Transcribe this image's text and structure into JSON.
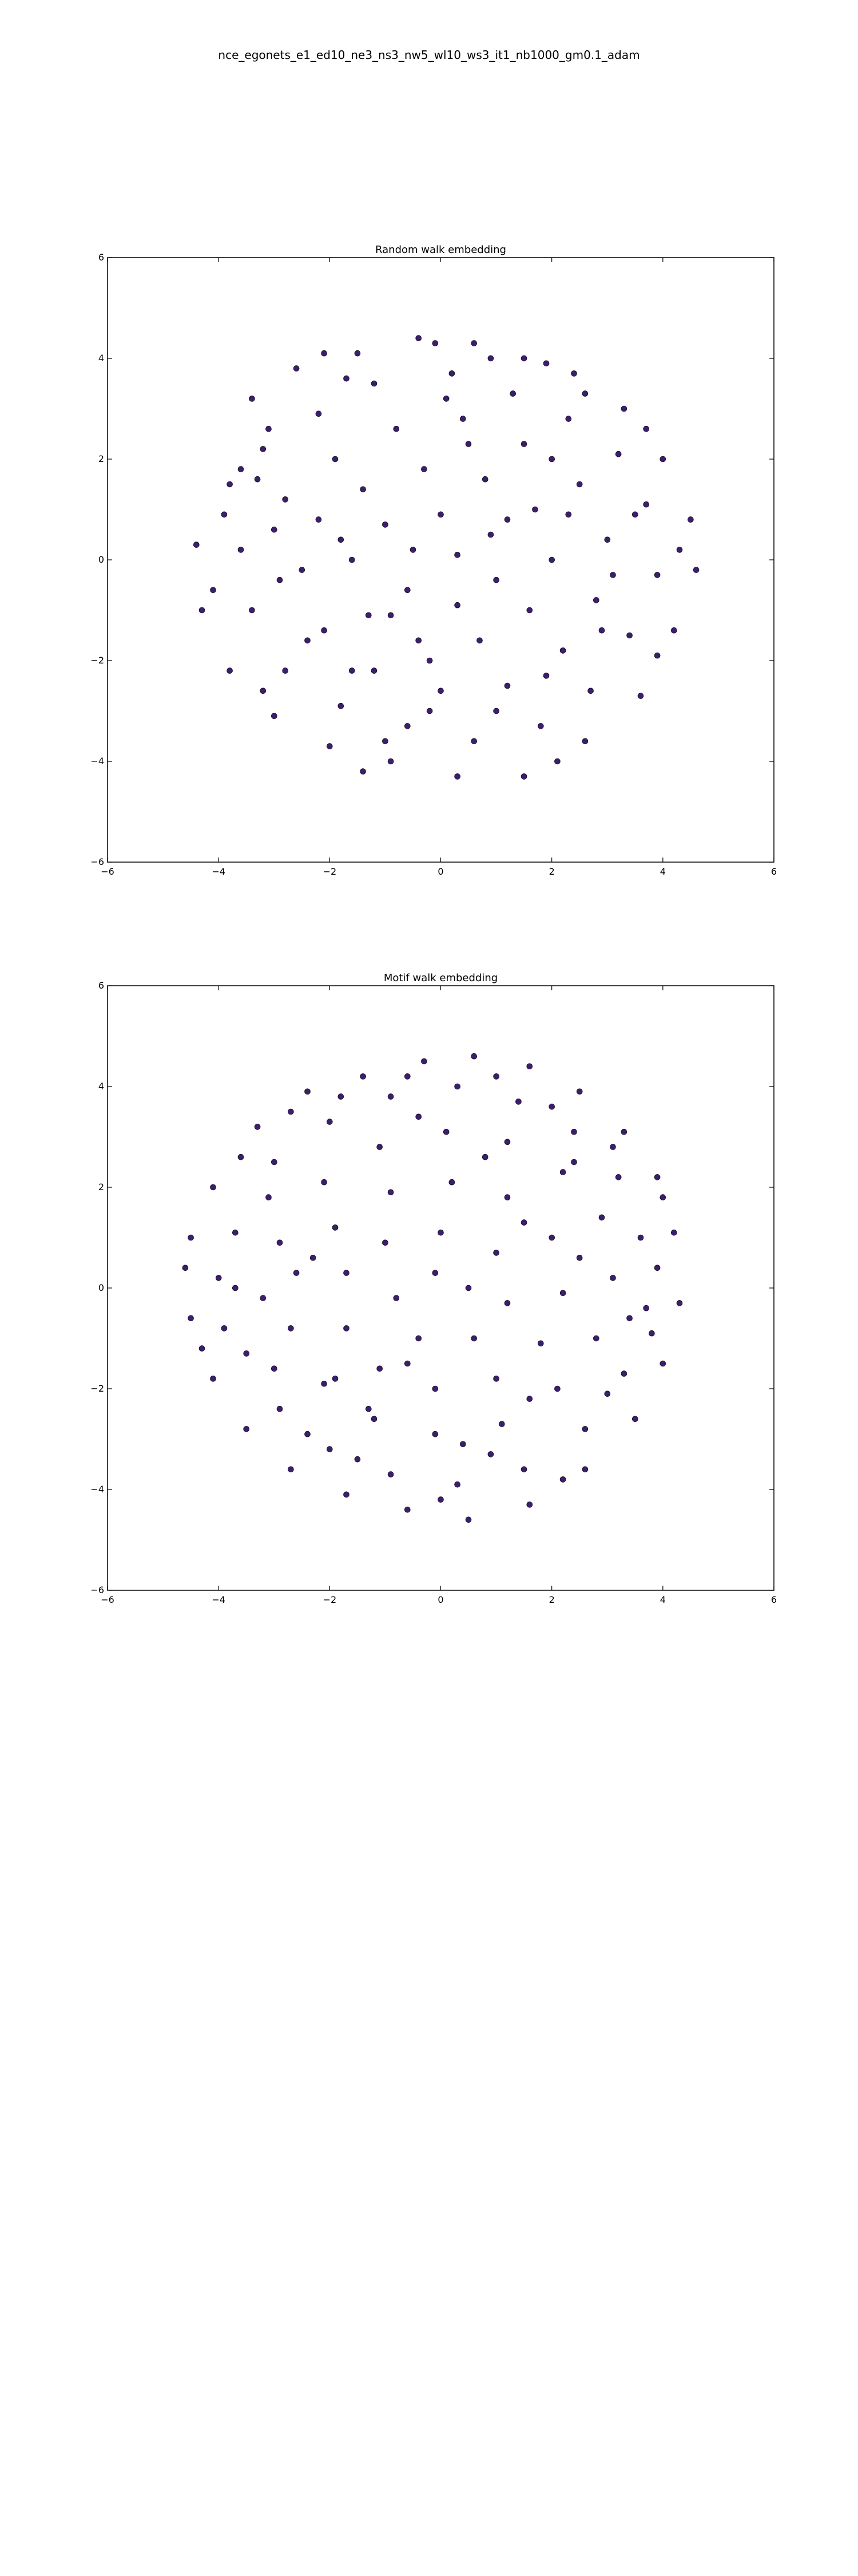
{
  "figure": {
    "title": "nce_egonets_e1_ed10_ne3_ns3_nw5_wl10_ws3_it1_nb1000_gm0.1_adam"
  },
  "chart_data": [
    {
      "type": "scatter",
      "title": "Random walk embedding",
      "xlim": [
        -6,
        6
      ],
      "ylim": [
        -6,
        6
      ],
      "xticks": [
        "−6",
        "−4",
        "−2",
        "0",
        "2",
        "4",
        "6"
      ],
      "yticks": [
        "6",
        "4",
        "2",
        "0",
        "−2",
        "−4",
        "−6"
      ],
      "grid": false,
      "marker_color": "#3b1f6e",
      "points": [
        [
          -3.8,
          1.5
        ],
        [
          -3.4,
          3.2
        ],
        [
          -2.6,
          3.8
        ],
        [
          -1.5,
          4.1
        ],
        [
          -0.4,
          4.4
        ],
        [
          0.6,
          4.3
        ],
        [
          1.5,
          4.0
        ],
        [
          2.4,
          3.7
        ],
        [
          3.3,
          3.0
        ],
        [
          4.0,
          2.0
        ],
        [
          4.5,
          0.8
        ],
        [
          4.6,
          -0.2
        ],
        [
          4.2,
          -1.4
        ],
        [
          3.6,
          -2.7
        ],
        [
          2.6,
          -3.6
        ],
        [
          1.5,
          -4.3
        ],
        [
          0.3,
          -4.3
        ],
        [
          -0.9,
          -4.0
        ],
        [
          -2.0,
          -3.7
        ],
        [
          -3.0,
          -3.1
        ],
        [
          -3.8,
          -2.2
        ],
        [
          -4.3,
          -1.0
        ],
        [
          -4.4,
          0.3
        ],
        [
          -3.9,
          0.9
        ],
        [
          -3.2,
          2.2
        ],
        [
          -2.2,
          2.9
        ],
        [
          -1.2,
          3.5
        ],
        [
          0.2,
          3.7
        ],
        [
          1.3,
          3.3
        ],
        [
          2.3,
          2.8
        ],
        [
          3.2,
          2.1
        ],
        [
          3.7,
          1.1
        ],
        [
          3.9,
          -0.3
        ],
        [
          3.4,
          -1.5
        ],
        [
          2.7,
          -2.6
        ],
        [
          1.8,
          -3.3
        ],
        [
          0.6,
          -3.6
        ],
        [
          -0.6,
          -3.3
        ],
        [
          -1.8,
          -2.9
        ],
        [
          -2.8,
          -2.2
        ],
        [
          -3.4,
          -1.0
        ],
        [
          -3.6,
          0.2
        ],
        [
          -2.8,
          1.2
        ],
        [
          -1.9,
          2.0
        ],
        [
          -0.8,
          2.6
        ],
        [
          0.4,
          2.8
        ],
        [
          1.5,
          2.3
        ],
        [
          2.5,
          1.5
        ],
        [
          3.0,
          0.4
        ],
        [
          2.8,
          -0.8
        ],
        [
          2.2,
          -1.8
        ],
        [
          1.2,
          -2.5
        ],
        [
          0.0,
          -2.6
        ],
        [
          -1.2,
          -2.2
        ],
        [
          -2.1,
          -1.4
        ],
        [
          -2.5,
          -0.2
        ],
        [
          -2.2,
          0.8
        ],
        [
          -1.4,
          1.4
        ],
        [
          -0.3,
          1.8
        ],
        [
          0.8,
          1.6
        ],
        [
          1.7,
          1.0
        ],
        [
          2.0,
          0.0
        ],
        [
          1.6,
          -1.0
        ],
        [
          0.7,
          -1.6
        ],
        [
          -0.4,
          -1.6
        ],
        [
          -1.3,
          -1.1
        ],
        [
          -1.6,
          0.0
        ],
        [
          -1.0,
          0.7
        ],
        [
          0.0,
          0.9
        ],
        [
          0.9,
          0.5
        ],
        [
          1.0,
          -0.4
        ],
        [
          0.3,
          -0.9
        ],
        [
          -0.6,
          -0.6
        ],
        [
          -0.5,
          0.2
        ],
        [
          0.3,
          0.1
        ],
        [
          -3.0,
          0.6
        ],
        [
          -2.4,
          -1.6
        ],
        [
          -1.0,
          -3.6
        ],
        [
          1.0,
          -3.0
        ],
        [
          2.9,
          -1.4
        ],
        [
          3.5,
          0.9
        ],
        [
          2.6,
          3.3
        ],
        [
          0.9,
          4.0
        ],
        [
          -1.7,
          3.6
        ],
        [
          -3.6,
          1.8
        ],
        [
          -4.1,
          -0.6
        ],
        [
          -3.2,
          -2.6
        ],
        [
          -1.4,
          -4.2
        ],
        [
          2.1,
          -4.0
        ],
        [
          3.9,
          -1.9
        ],
        [
          4.3,
          0.2
        ],
        [
          3.7,
          2.6
        ],
        [
          1.9,
          3.9
        ],
        [
          -0.1,
          4.3
        ],
        [
          -2.1,
          4.1
        ],
        [
          -3.1,
          2.6
        ],
        [
          -0.2,
          -2.0
        ],
        [
          1.9,
          -2.3
        ],
        [
          2.3,
          0.9
        ],
        [
          0.5,
          2.3
        ],
        [
          -1.8,
          0.4
        ],
        [
          -0.9,
          -1.1
        ],
        [
          1.2,
          0.8
        ],
        [
          -2.9,
          -0.4
        ],
        [
          0.1,
          3.2
        ],
        [
          3.1,
          -0.3
        ],
        [
          -0.2,
          -3.0
        ],
        [
          -3.3,
          1.6
        ],
        [
          2.0,
          2.0
        ],
        [
          -1.6,
          -2.2
        ]
      ]
    },
    {
      "type": "scatter",
      "title": "Motif walk embedding",
      "xlim": [
        -6,
        6
      ],
      "ylim": [
        -6,
        6
      ],
      "xticks": [
        "−6",
        "−4",
        "−2",
        "0",
        "2",
        "4",
        "6"
      ],
      "yticks": [
        "6",
        "4",
        "2",
        "0",
        "−2",
        "−4",
        "−6"
      ],
      "grid": false,
      "marker_color": "#3b1f6e",
      "points": [
        [
          -4.5,
          1.0
        ],
        [
          -4.1,
          2.0
        ],
        [
          -3.3,
          3.2
        ],
        [
          -2.4,
          3.9
        ],
        [
          -1.4,
          4.2
        ],
        [
          -0.3,
          4.5
        ],
        [
          0.6,
          4.6
        ],
        [
          1.6,
          4.4
        ],
        [
          2.5,
          3.9
        ],
        [
          3.3,
          3.1
        ],
        [
          3.9,
          2.2
        ],
        [
          4.2,
          1.1
        ],
        [
          4.3,
          -0.3
        ],
        [
          4.0,
          -1.5
        ],
        [
          3.5,
          -2.6
        ],
        [
          2.6,
          -3.6
        ],
        [
          1.6,
          -4.3
        ],
        [
          0.5,
          -4.6
        ],
        [
          -0.6,
          -4.4
        ],
        [
          -1.7,
          -4.1
        ],
        [
          -2.7,
          -3.6
        ],
        [
          -3.5,
          -2.8
        ],
        [
          -4.1,
          -1.8
        ],
        [
          -4.5,
          -0.6
        ],
        [
          -4.6,
          0.4
        ],
        [
          -3.7,
          1.1
        ],
        [
          -3.0,
          2.5
        ],
        [
          -2.0,
          3.3
        ],
        [
          -0.9,
          3.8
        ],
        [
          0.3,
          4.0
        ],
        [
          1.4,
          3.7
        ],
        [
          2.4,
          3.1
        ],
        [
          3.2,
          2.2
        ],
        [
          3.6,
          1.0
        ],
        [
          3.7,
          -0.4
        ],
        [
          3.3,
          -1.7
        ],
        [
          2.6,
          -2.8
        ],
        [
          1.5,
          -3.6
        ],
        [
          0.3,
          -3.9
        ],
        [
          -0.9,
          -3.7
        ],
        [
          -2.0,
          -3.2
        ],
        [
          -2.9,
          -2.4
        ],
        [
          -3.5,
          -1.3
        ],
        [
          -3.7,
          0.0
        ],
        [
          -2.9,
          0.9
        ],
        [
          -2.1,
          2.1
        ],
        [
          -1.1,
          2.8
        ],
        [
          0.1,
          3.1
        ],
        [
          1.2,
          2.9
        ],
        [
          2.2,
          2.3
        ],
        [
          2.9,
          1.4
        ],
        [
          3.1,
          0.2
        ],
        [
          2.8,
          -1.0
        ],
        [
          2.1,
          -2.0
        ],
        [
          1.1,
          -2.7
        ],
        [
          -0.1,
          -2.9
        ],
        [
          -1.2,
          -2.6
        ],
        [
          -2.1,
          -1.9
        ],
        [
          -2.7,
          -0.8
        ],
        [
          -2.6,
          0.3
        ],
        [
          -1.9,
          1.2
        ],
        [
          -0.9,
          1.9
        ],
        [
          0.2,
          2.1
        ],
        [
          1.2,
          1.8
        ],
        [
          2.0,
          1.0
        ],
        [
          2.2,
          -0.1
        ],
        [
          1.8,
          -1.1
        ],
        [
          1.0,
          -1.8
        ],
        [
          -0.1,
          -2.0
        ],
        [
          -1.1,
          -1.6
        ],
        [
          -1.7,
          -0.8
        ],
        [
          -1.7,
          0.3
        ],
        [
          -1.0,
          0.9
        ],
        [
          0.0,
          1.1
        ],
        [
          1.0,
          0.7
        ],
        [
          1.2,
          -0.3
        ],
        [
          0.6,
          -1.0
        ],
        [
          -0.4,
          -1.0
        ],
        [
          -0.8,
          -0.2
        ],
        [
          -0.1,
          0.3
        ],
        [
          0.5,
          0.0
        ],
        [
          -3.9,
          -0.8
        ],
        [
          -3.0,
          -1.6
        ],
        [
          -1.5,
          -3.4
        ],
        [
          0.9,
          -3.3
        ],
        [
          3.0,
          -2.1
        ],
        [
          3.9,
          0.4
        ],
        [
          3.1,
          2.8
        ],
        [
          1.0,
          4.2
        ],
        [
          -1.8,
          3.8
        ],
        [
          -3.6,
          2.6
        ],
        [
          -4.3,
          -1.2
        ],
        [
          -2.4,
          -2.9
        ],
        [
          0.0,
          -4.2
        ],
        [
          2.2,
          -3.8
        ],
        [
          3.8,
          -0.9
        ],
        [
          4.0,
          1.8
        ],
        [
          2.0,
          3.6
        ],
        [
          -0.6,
          4.2
        ],
        [
          -2.7,
          3.5
        ],
        [
          -4.0,
          0.2
        ],
        [
          -1.3,
          -2.4
        ],
        [
          1.6,
          -2.2
        ],
        [
          2.5,
          0.6
        ],
        [
          0.8,
          2.6
        ],
        [
          -2.3,
          0.6
        ],
        [
          -0.6,
          -1.5
        ],
        [
          1.5,
          1.3
        ],
        [
          -3.2,
          -0.2
        ],
        [
          -0.4,
          3.4
        ],
        [
          3.4,
          -0.6
        ],
        [
          0.4,
          -3.1
        ],
        [
          -3.1,
          1.8
        ],
        [
          2.4,
          2.5
        ],
        [
          -1.9,
          -1.8
        ]
      ]
    }
  ]
}
